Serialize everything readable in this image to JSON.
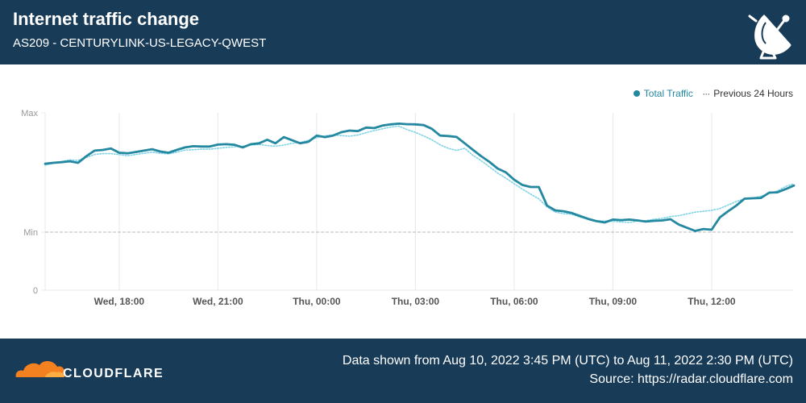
{
  "header": {
    "title": "Internet traffic change",
    "subtitle": "AS209 - CENTURYLINK-US-LEGACY-QWEST"
  },
  "legend": {
    "total_label": "Total Traffic",
    "previous_label": "Previous 24 Hours"
  },
  "footer": {
    "logo_text": "CLOUDFLARE",
    "range_text": "Data shown from Aug 10, 2022 3:45 PM (UTC) to Aug 11, 2022 2:30 PM (UTC)",
    "source_text": "Source: https://radar.cloudflare.com"
  },
  "colors": {
    "header_bg": "#183b58",
    "total": "#2388a0",
    "previous": "#7fd3e6",
    "min_line": "#b8b8b8",
    "grid": "#e5e8eb",
    "axis_text": "#999999",
    "tick_text": "#555555",
    "logo_orange": "#f48120"
  },
  "chart_data": {
    "type": "line",
    "title": "Internet traffic change",
    "subtitle": "AS209 - CENTURYLINK-US-LEGACY-QWEST",
    "y_ticks": [
      "Max",
      "Min",
      "0"
    ],
    "ylim": [
      0,
      1
    ],
    "min_level": 0.327,
    "x_ticks": [
      {
        "label": "Wed, 18:00",
        "hour": 18
      },
      {
        "label": "Wed, 21:00",
        "hour": 21
      },
      {
        "label": "Thu, 00:00",
        "hour": 24
      },
      {
        "label": "Thu, 03:00",
        "hour": 27
      },
      {
        "label": "Thu, 06:00",
        "hour": 30
      },
      {
        "label": "Thu, 09:00",
        "hour": 33
      },
      {
        "label": "Thu, 12:00",
        "hour": 36
      }
    ],
    "xlim": [
      15.75,
      38.5
    ],
    "grid": "vertical",
    "legend_position": "top-right",
    "series": [
      {
        "name": "Total Traffic",
        "style": "solid",
        "points": [
          [
            15.75,
            0.713
          ],
          [
            16.0,
            0.718
          ],
          [
            16.25,
            0.722
          ],
          [
            16.5,
            0.727
          ],
          [
            16.75,
            0.718
          ],
          [
            17.0,
            0.755
          ],
          [
            17.25,
            0.787
          ],
          [
            17.5,
            0.791
          ],
          [
            17.75,
            0.799
          ],
          [
            18.0,
            0.775
          ],
          [
            18.25,
            0.772
          ],
          [
            18.5,
            0.779
          ],
          [
            18.75,
            0.787
          ],
          [
            19.0,
            0.795
          ],
          [
            19.25,
            0.782
          ],
          [
            19.5,
            0.775
          ],
          [
            19.75,
            0.791
          ],
          [
            20.0,
            0.805
          ],
          [
            20.25,
            0.812
          ],
          [
            20.5,
            0.81
          ],
          [
            20.75,
            0.81
          ],
          [
            21.0,
            0.821
          ],
          [
            21.25,
            0.823
          ],
          [
            21.5,
            0.82
          ],
          [
            21.75,
            0.805
          ],
          [
            22.0,
            0.823
          ],
          [
            22.25,
            0.828
          ],
          [
            22.5,
            0.848
          ],
          [
            22.75,
            0.828
          ],
          [
            23.0,
            0.863
          ],
          [
            23.25,
            0.846
          ],
          [
            23.5,
            0.828
          ],
          [
            23.75,
            0.837
          ],
          [
            24.0,
            0.872
          ],
          [
            24.25,
            0.863
          ],
          [
            24.5,
            0.872
          ],
          [
            24.75,
            0.891
          ],
          [
            25.0,
            0.9
          ],
          [
            25.25,
            0.897
          ],
          [
            25.5,
            0.917
          ],
          [
            25.75,
            0.914
          ],
          [
            26.0,
            0.928
          ],
          [
            26.25,
            0.935
          ],
          [
            26.5,
            0.939
          ],
          [
            26.75,
            0.936
          ],
          [
            27.0,
            0.935
          ],
          [
            27.25,
            0.931
          ],
          [
            27.5,
            0.91
          ],
          [
            27.75,
            0.872
          ],
          [
            28.0,
            0.869
          ],
          [
            28.25,
            0.864
          ],
          [
            28.5,
            0.828
          ],
          [
            28.75,
            0.791
          ],
          [
            29.0,
            0.755
          ],
          [
            29.25,
            0.723
          ],
          [
            29.5,
            0.686
          ],
          [
            29.75,
            0.664
          ],
          [
            30.0,
            0.623
          ],
          [
            30.25,
            0.593
          ],
          [
            30.5,
            0.582
          ],
          [
            30.75,
            0.582
          ],
          [
            31.0,
            0.477
          ],
          [
            31.25,
            0.45
          ],
          [
            31.5,
            0.445
          ],
          [
            31.75,
            0.435
          ],
          [
            32.0,
            0.418
          ],
          [
            32.25,
            0.402
          ],
          [
            32.5,
            0.389
          ],
          [
            32.75,
            0.382
          ],
          [
            33.0,
            0.398
          ],
          [
            33.25,
            0.395
          ],
          [
            33.5,
            0.398
          ],
          [
            33.75,
            0.393
          ],
          [
            34.0,
            0.387
          ],
          [
            34.25,
            0.391
          ],
          [
            34.5,
            0.393
          ],
          [
            34.75,
            0.4
          ],
          [
            35.0,
            0.37
          ],
          [
            35.25,
            0.352
          ],
          [
            35.5,
            0.334
          ],
          [
            35.75,
            0.345
          ],
          [
            36.0,
            0.341
          ],
          [
            36.25,
            0.41
          ],
          [
            36.5,
            0.445
          ],
          [
            36.75,
            0.477
          ],
          [
            37.0,
            0.516
          ],
          [
            37.25,
            0.518
          ],
          [
            37.5,
            0.52
          ],
          [
            37.75,
            0.55
          ],
          [
            38.0,
            0.552
          ],
          [
            38.25,
            0.57
          ],
          [
            38.5,
            0.59
          ],
          [
            38.75,
            0.6
          ]
        ]
      },
      {
        "name": "Previous 24 Hours",
        "style": "dotted",
        "points": [
          [
            15.75,
            0.705
          ],
          [
            16.0,
            0.715
          ],
          [
            16.25,
            0.725
          ],
          [
            16.5,
            0.735
          ],
          [
            16.75,
            0.732
          ],
          [
            17.0,
            0.748
          ],
          [
            17.25,
            0.765
          ],
          [
            17.5,
            0.77
          ],
          [
            17.75,
            0.77
          ],
          [
            18.0,
            0.765
          ],
          [
            18.25,
            0.758
          ],
          [
            18.5,
            0.765
          ],
          [
            18.75,
            0.772
          ],
          [
            19.0,
            0.778
          ],
          [
            19.25,
            0.772
          ],
          [
            19.5,
            0.768
          ],
          [
            19.75,
            0.778
          ],
          [
            20.0,
            0.79
          ],
          [
            20.25,
            0.792
          ],
          [
            20.5,
            0.795
          ],
          [
            20.75,
            0.795
          ],
          [
            21.0,
            0.8
          ],
          [
            21.25,
            0.805
          ],
          [
            21.5,
            0.808
          ],
          [
            21.75,
            0.812
          ],
          [
            22.0,
            0.818
          ],
          [
            22.25,
            0.822
          ],
          [
            22.5,
            0.815
          ],
          [
            22.75,
            0.812
          ],
          [
            23.0,
            0.818
          ],
          [
            23.25,
            0.828
          ],
          [
            23.5,
            0.833
          ],
          [
            23.75,
            0.845
          ],
          [
            24.0,
            0.86
          ],
          [
            24.25,
            0.87
          ],
          [
            24.5,
            0.875
          ],
          [
            24.75,
            0.872
          ],
          [
            25.0,
            0.868
          ],
          [
            25.25,
            0.875
          ],
          [
            25.5,
            0.888
          ],
          [
            25.75,
            0.9
          ],
          [
            26.0,
            0.91
          ],
          [
            26.25,
            0.92
          ],
          [
            26.5,
            0.925
          ],
          [
            26.75,
            0.905
          ],
          [
            27.0,
            0.89
          ],
          [
            27.25,
            0.87
          ],
          [
            27.5,
            0.848
          ],
          [
            27.75,
            0.82
          ],
          [
            28.0,
            0.8
          ],
          [
            28.25,
            0.788
          ],
          [
            28.5,
            0.8
          ],
          [
            28.75,
            0.76
          ],
          [
            29.0,
            0.73
          ],
          [
            29.25,
            0.695
          ],
          [
            29.5,
            0.66
          ],
          [
            29.75,
            0.632
          ],
          [
            30.0,
            0.6
          ],
          [
            30.25,
            0.57
          ],
          [
            30.5,
            0.542
          ],
          [
            30.75,
            0.515
          ],
          [
            31.0,
            0.47
          ],
          [
            31.25,
            0.44
          ],
          [
            31.5,
            0.432
          ],
          [
            31.75,
            0.428
          ],
          [
            32.0,
            0.412
          ],
          [
            32.25,
            0.4
          ],
          [
            32.5,
            0.392
          ],
          [
            32.75,
            0.39
          ],
          [
            33.0,
            0.388
          ],
          [
            33.25,
            0.385
          ],
          [
            33.5,
            0.382
          ],
          [
            33.75,
            0.39
          ],
          [
            34.0,
            0.392
          ],
          [
            34.25,
            0.4
          ],
          [
            34.5,
            0.405
          ],
          [
            34.75,
            0.415
          ],
          [
            35.0,
            0.42
          ],
          [
            35.25,
            0.43
          ],
          [
            35.5,
            0.44
          ],
          [
            35.75,
            0.445
          ],
          [
            36.0,
            0.45
          ],
          [
            36.25,
            0.46
          ],
          [
            36.5,
            0.48
          ],
          [
            36.75,
            0.5
          ],
          [
            37.0,
            0.515
          ],
          [
            37.25,
            0.52
          ],
          [
            37.5,
            0.53
          ],
          [
            37.75,
            0.545
          ],
          [
            38.0,
            0.56
          ],
          [
            38.25,
            0.585
          ],
          [
            38.5,
            0.6
          ],
          [
            38.75,
            0.615
          ]
        ]
      }
    ]
  }
}
